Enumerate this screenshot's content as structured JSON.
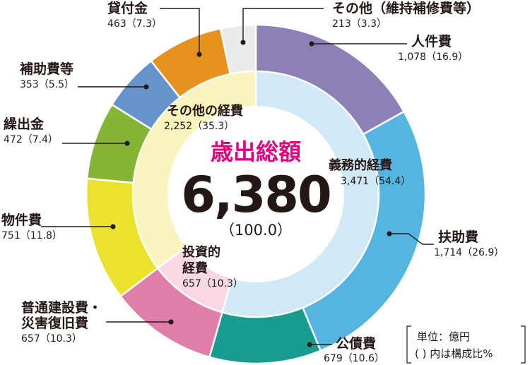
{
  "chart_data": {
    "type": "pie",
    "center": {
      "title": "歳出総額",
      "total": "6,380",
      "percent": "（100.0）"
    },
    "outer": [
      {
        "name": "人件費",
        "value": 1078,
        "value_text": "1,078（16.9）",
        "color": "#8c80b7"
      },
      {
        "name": "扶助費",
        "value": 1714,
        "value_text": "1,714（26.9）",
        "color": "#54b5e1"
      },
      {
        "name": "公債費",
        "value": 679,
        "value_text": "679（10.6）",
        "color": "#1a9b8f"
      },
      {
        "name": "普通建設費・災害復旧費",
        "name_lines": [
          "普通建設費・",
          "災害復旧費"
        ],
        "value": 657,
        "value_text": "657（10.3）",
        "color": "#e07ea8"
      },
      {
        "name": "物件費",
        "value": 751,
        "value_text": "751（11.8）",
        "color": "#ece22d"
      },
      {
        "name": "繰出金",
        "value": 472,
        "value_text": "472（7.4）",
        "color": "#86b534"
      },
      {
        "name": "補助費等",
        "value": 353,
        "value_text": "353（5.5）",
        "color": "#6693c9"
      },
      {
        "name": "貸付金",
        "value": 463,
        "value_text": "463（7.3）",
        "color": "#e6921e"
      },
      {
        "name": "その他（維持補修費等）",
        "value": 213,
        "value_text": "213（3.3）",
        "color": "#ebebeb"
      }
    ],
    "inner": [
      {
        "name": "義務的経費",
        "value": 3471,
        "value_text": "3,471（54.4）",
        "color": "#d1e8f6"
      },
      {
        "name": "投資的経費",
        "name_lines": [
          "投資的",
          "経費"
        ],
        "value": 657,
        "value_text": "657（10.3）",
        "color": "#f8d8e5"
      },
      {
        "name": "その他の経費",
        "value": 2252,
        "value_text": "2,252（35.3）",
        "color": "#f9f3bd"
      }
    ]
  },
  "unit_note": {
    "line1": "単位：億円",
    "line2": "( ) 内は構成比%"
  }
}
